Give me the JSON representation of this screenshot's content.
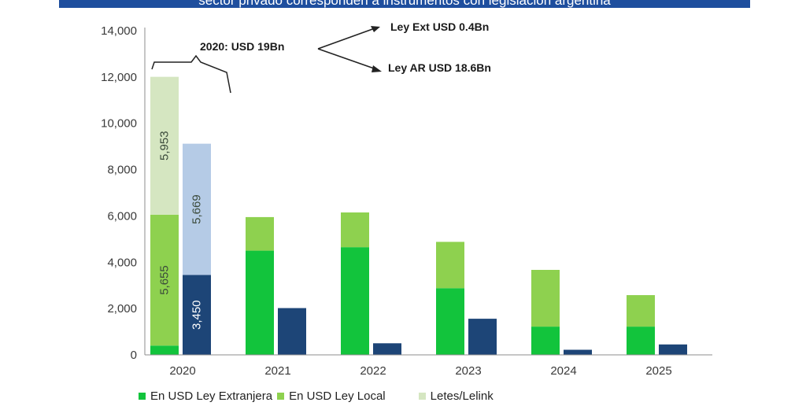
{
  "banner": {
    "text": "sector privado corresponden a instrumentos con legislación argentina",
    "color": "#1e4e9e"
  },
  "chart_data": {
    "type": "bar",
    "categories": [
      "2020",
      "2021",
      "2022",
      "2023",
      "2024",
      "2025"
    ],
    "ylim": [
      0,
      14000
    ],
    "yticks": [
      "0",
      "2,000",
      "4,000",
      "6,000",
      "8,000",
      "10,000",
      "12,000",
      "14,000"
    ],
    "grid": false,
    "legend_position": "bottom",
    "series": [
      {
        "name": "En USD Ley Extranjera",
        "color": "#12c43c",
        "stack": "a",
        "values": [
          400,
          4500,
          4650,
          2880,
          1220,
          1220
        ]
      },
      {
        "name": "En USD Ley Local",
        "color": "#8ed14f",
        "stack": "a",
        "values": [
          5655,
          1450,
          1500,
          2000,
          2450,
          1360
        ]
      },
      {
        "name": "Letes/Lelink",
        "color": "#d5e6c1",
        "stack": "a",
        "values": [
          5953,
          0,
          0,
          0,
          0,
          0
        ]
      },
      {
        "name": "",
        "color": "#1d4577",
        "stack": "b",
        "values": [
          3450,
          2020,
          500,
          1560,
          220,
          450
        ]
      },
      {
        "name": "",
        "color": "#b5cbe6",
        "stack": "b",
        "values": [
          5669,
          0,
          0,
          0,
          0,
          0
        ]
      }
    ],
    "data_labels": [
      {
        "text": "5,953",
        "category": "2020",
        "series": 2
      },
      {
        "text": "5,655",
        "category": "2020",
        "series": 1
      },
      {
        "text": "5,669",
        "category": "2020",
        "series": 4
      },
      {
        "text": "3,450",
        "category": "2020",
        "series": 3
      }
    ],
    "annotations": {
      "total": "2020: USD 19Bn",
      "branch_top": "Ley Ext USD 0.4Bn",
      "branch_bottom": "Ley AR USD 18.6Bn"
    }
  },
  "legend": [
    {
      "label": "En USD Ley Extranjera",
      "color": "#12c43c"
    },
    {
      "label": "En USD Ley Local",
      "color": "#8ed14f"
    },
    {
      "label": "Letes/Lelink",
      "color": "#d5e6c1"
    }
  ]
}
